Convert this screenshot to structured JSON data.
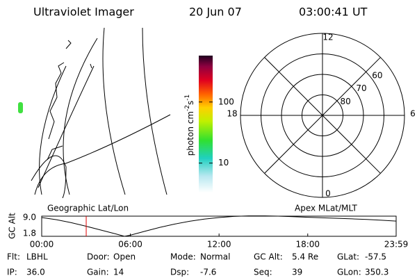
{
  "header": {
    "title": "Ultraviolet Imager",
    "date": "20 Jun 07",
    "time": "03:00:41 UT"
  },
  "colorbar": {
    "label_parts": [
      "photon cm",
      "-2",
      "s",
      "-1"
    ],
    "scale": "log",
    "clim": [
      3.3,
      575
    ],
    "ticks": [
      10,
      100
    ]
  },
  "polar": {
    "lat_lim": [
      50,
      90
    ],
    "lat_rings": [
      60,
      70,
      80
    ],
    "mlt_ticks": [
      12,
      18,
      6,
      0
    ]
  },
  "map_labels": {
    "left": "Geographic Lat/Lon",
    "right": "Apex MLat/MLT"
  },
  "altitude": {
    "ylabel": "GC Alt",
    "ylim": [
      1.8,
      9.2
    ],
    "yticks": [
      {
        "value": 9.0,
        "label": "9.0"
      },
      {
        "value": 1.8,
        "label": "1.8"
      }
    ],
    "xlim": [
      0,
      23.983
    ],
    "xticks": [
      {
        "value": 0,
        "label": "00:00"
      },
      {
        "value": 6,
        "label": "06:00"
      },
      {
        "value": 12,
        "label": "12:00"
      },
      {
        "value": 18,
        "label": "18:00"
      },
      {
        "value": 23.983,
        "label": "23:59"
      }
    ],
    "marker": 3.011,
    "marker_color": "#e00000",
    "x": [
      0,
      1,
      2,
      3,
      4,
      5,
      5.6,
      6,
      7,
      8,
      9,
      10,
      11,
      12,
      13,
      14,
      15,
      16,
      17,
      18,
      19,
      20,
      21,
      22,
      23,
      23.983
    ],
    "values": [
      8.7,
      7.9,
      6.8,
      5.5,
      4.1,
      2.7,
      1.8,
      2.2,
      3.7,
      5.1,
      6.3,
      7.3,
      8.1,
      8.7,
      9.1,
      9.3,
      9.3,
      9.2,
      9.0,
      8.8,
      8.6,
      8.4,
      8.2,
      8.0,
      7.7,
      7.4
    ]
  },
  "info": [
    [
      {
        "label": "Flt:",
        "value": "LBHL"
      },
      {
        "label": "Door:",
        "value": "Open"
      },
      {
        "label": "Mode:",
        "value": "Normal"
      },
      {
        "label": "GC Alt:",
        "value": "5.4 Re"
      },
      {
        "label": "GLat:",
        "value": "-57.5"
      }
    ],
    [
      {
        "label": "IP:",
        "value": "36.0"
      },
      {
        "label": "Gain:",
        "value": "14"
      },
      {
        "label": "Dsp:",
        "value": "-7.6"
      },
      {
        "label": "Seq:",
        "value": "39"
      },
      {
        "label": "GLon:",
        "value": "350.3"
      }
    ]
  ]
}
